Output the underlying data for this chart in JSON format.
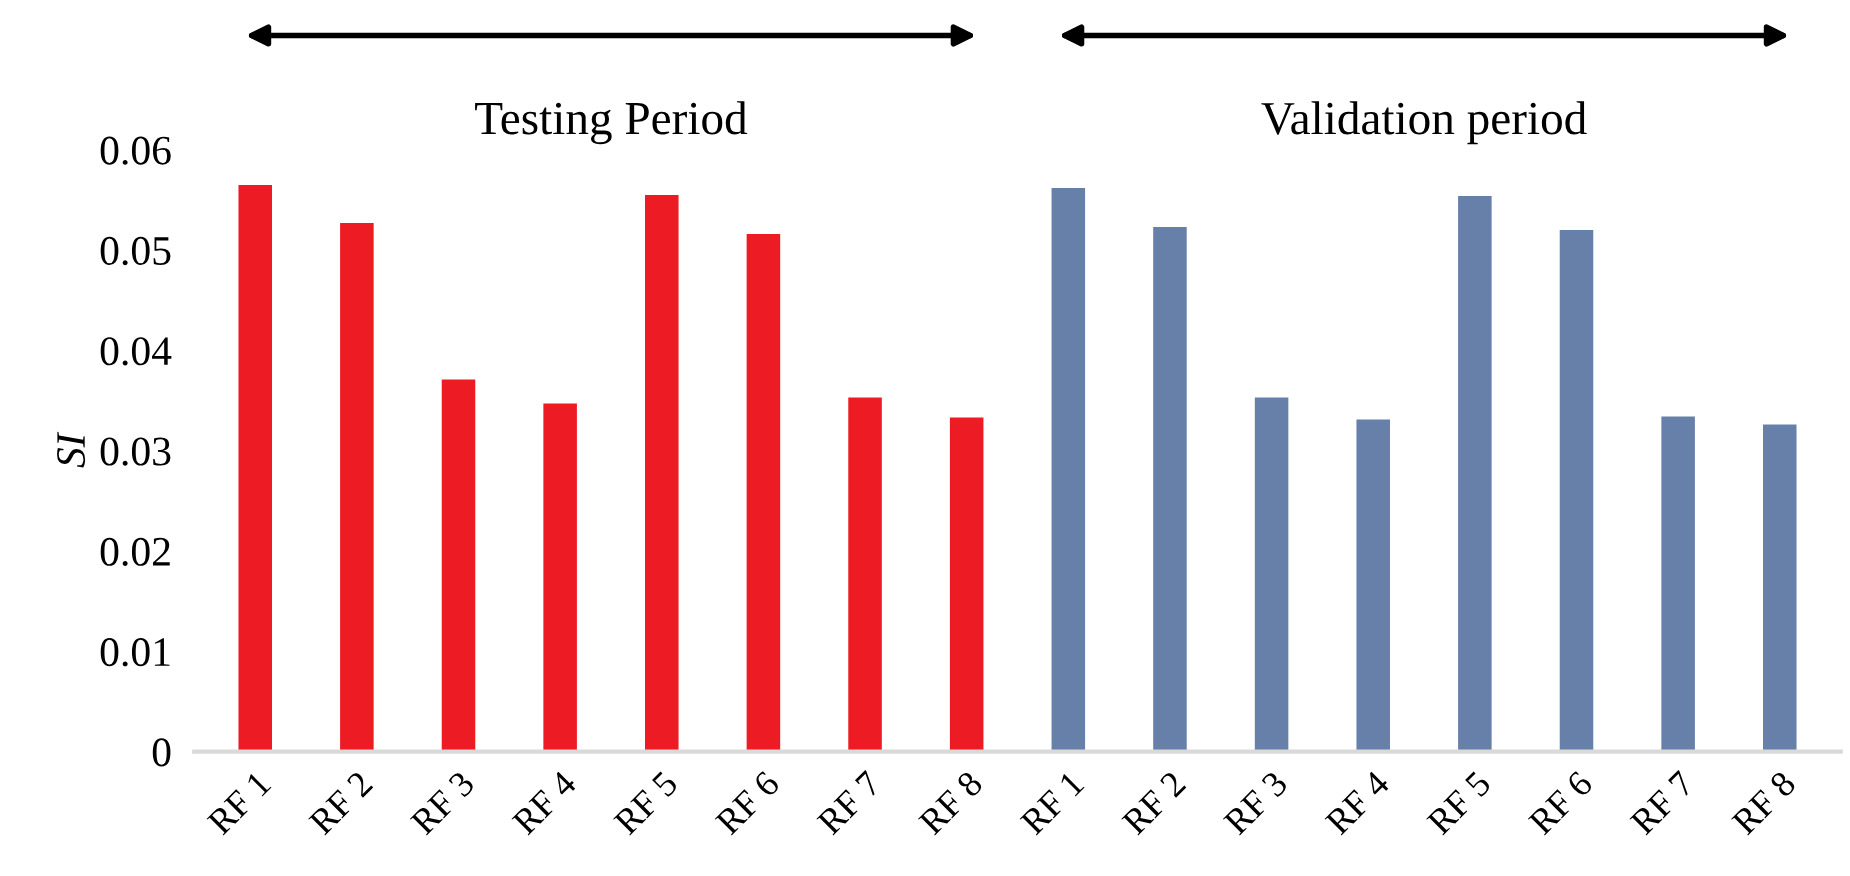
{
  "chart_data": {
    "type": "bar",
    "ylabel": "SI",
    "categories": [
      "RF 1",
      "RF 2",
      "RF 3",
      "RF 4",
      "RF 5",
      "RF 6",
      "RF 7",
      "RF 8",
      "RF 1",
      "RF 2",
      "RF 3",
      "RF 4",
      "RF 5",
      "RF 6",
      "RF 7",
      "RF 8"
    ],
    "values": [
      0.0565,
      0.0527,
      0.0371,
      0.0347,
      0.0555,
      0.0516,
      0.0353,
      0.0333,
      0.0562,
      0.0523,
      0.0353,
      0.0331,
      0.0554,
      0.052,
      0.0334,
      0.0326
    ],
    "colors": [
      "#ed1c24",
      "#ed1c24",
      "#ed1c24",
      "#ed1c24",
      "#ed1c24",
      "#ed1c24",
      "#ed1c24",
      "#ed1c24",
      "#6780aa",
      "#6780aa",
      "#6780aa",
      "#6780aa",
      "#6780aa",
      "#6780aa",
      "#6780aa",
      "#6780aa"
    ],
    "ylim": [
      0,
      0.06
    ],
    "yticks": [
      {
        "value": 0,
        "label": "0"
      },
      0.01,
      0.02,
      0.03,
      0.04,
      0.05,
      0.06
    ],
    "annotations": [
      "Testing Period",
      "Validation period"
    ]
  }
}
